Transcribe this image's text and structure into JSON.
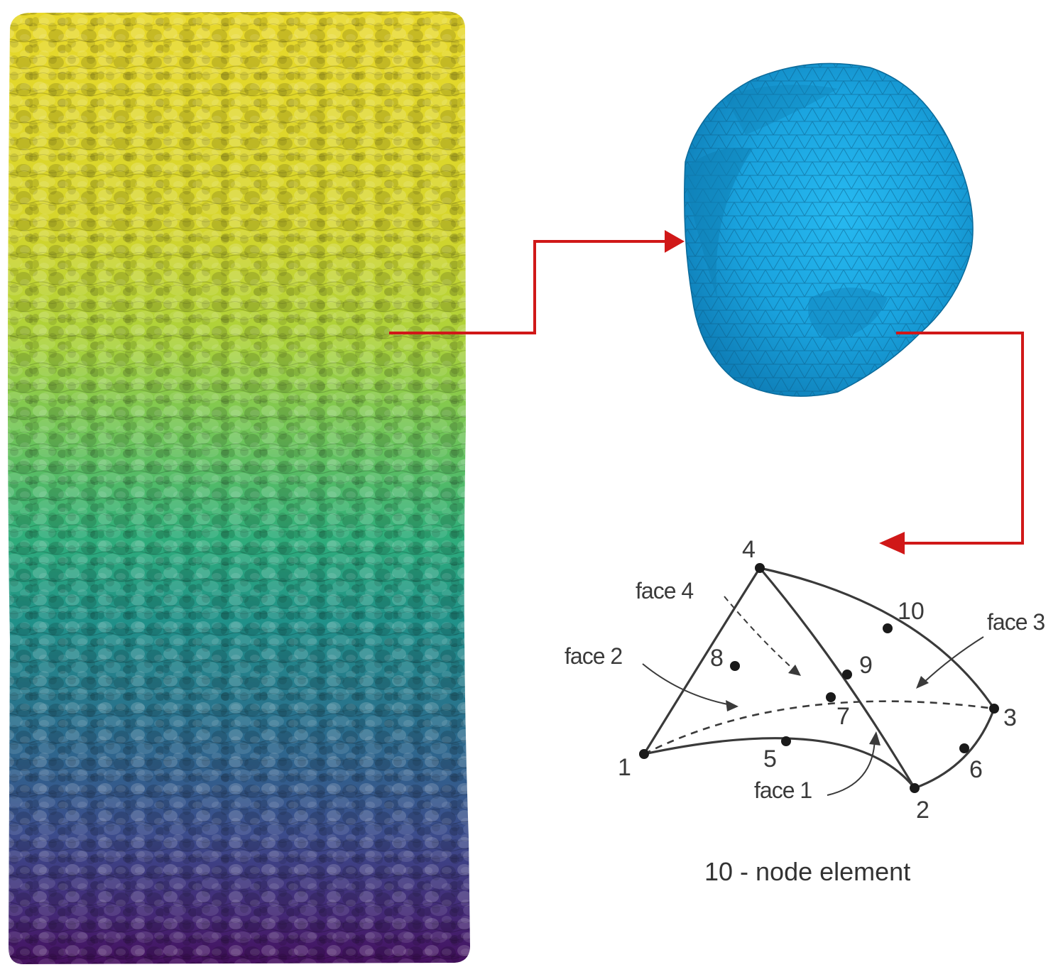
{
  "colors": {
    "column_top": "#e7d926",
    "column_upper": "#b5d437",
    "column_mid_upper": "#5fbf62",
    "column_mid": "#24998a",
    "column_mid_lower": "#2e6f8e",
    "column_lower": "#3a4b8e",
    "column_bottom": "#451366",
    "particle": "#1aa6e0",
    "particle_dark": "#0d7fb8",
    "arrow": "#d01818",
    "mesh_line": "#0b5f8a",
    "element_line": "#3a3a3a"
  },
  "icons": {
    "column": "particle-column-image",
    "particle": "meshed-particle-image",
    "arrow": "red-connector-arrow"
  },
  "element": {
    "caption": "10 - node element",
    "nodes": [
      {
        "id": "1",
        "label": "1"
      },
      {
        "id": "2",
        "label": "2"
      },
      {
        "id": "3",
        "label": "3"
      },
      {
        "id": "4",
        "label": "4"
      },
      {
        "id": "5",
        "label": "5"
      },
      {
        "id": "6",
        "label": "6"
      },
      {
        "id": "7",
        "label": "7"
      },
      {
        "id": "8",
        "label": "8"
      },
      {
        "id": "9",
        "label": "9"
      },
      {
        "id": "10",
        "label": "10"
      }
    ],
    "faces": [
      {
        "id": "face1",
        "label": "face 1"
      },
      {
        "id": "face2",
        "label": "face 2"
      },
      {
        "id": "face3",
        "label": "face 3"
      },
      {
        "id": "face4",
        "label": "face 4"
      }
    ]
  }
}
